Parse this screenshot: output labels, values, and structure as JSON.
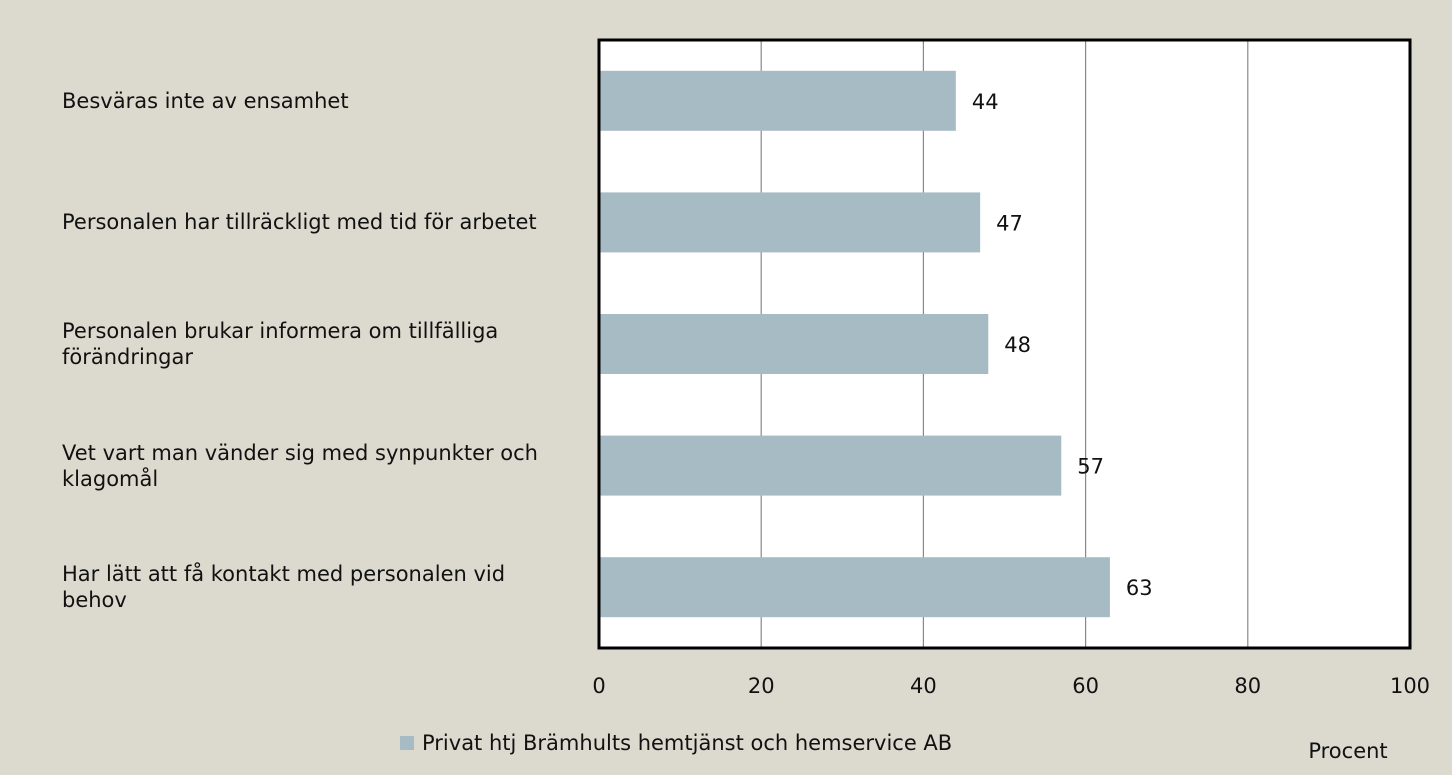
{
  "chart_data": {
    "type": "bar",
    "orientation": "horizontal",
    "categories": [
      "Besväras inte av ensamhet",
      "Personalen har tillräckligt med tid för arbetet",
      "Personalen brukar informera om tillfälliga förändringar",
      "Vet vart man vänder sig med synpunkter och klagomål",
      "Har lätt att få kontakt med personalen vid behov"
    ],
    "series": [
      {
        "name": "Privat htj Brämhults hemtjänst och hemservice AB",
        "color": "#a7bbc5",
        "values": [
          44,
          47,
          48,
          57,
          63
        ]
      }
    ],
    "xlim": [
      0,
      100
    ],
    "xticks": [
      0,
      20,
      40,
      60,
      80,
      100
    ],
    "xlabel": "Procent",
    "grid": true,
    "legend": "bottom"
  }
}
